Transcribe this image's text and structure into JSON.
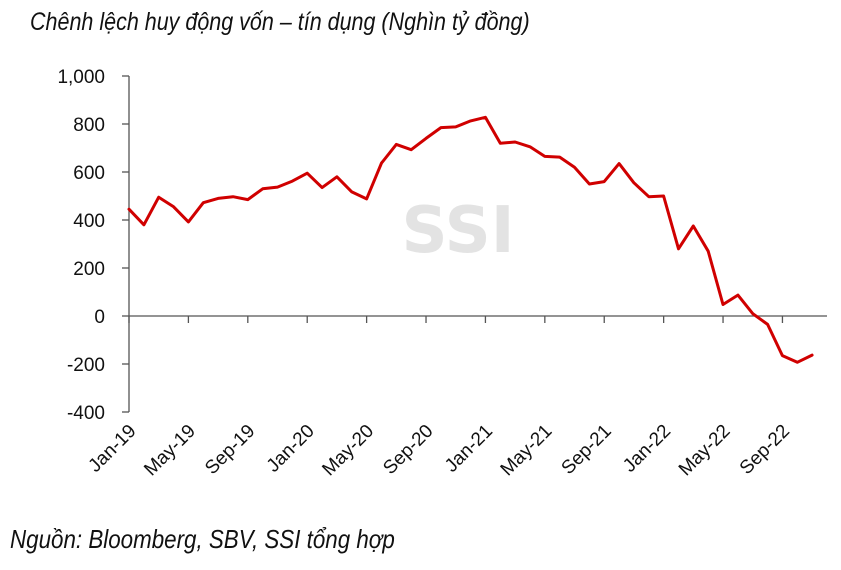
{
  "chart_data": {
    "type": "line",
    "title": "Chênh lệch huy động vốn – tín dụng (Nghìn tỷ đồng)",
    "source": "Nguồn:  Bloomberg, SBV, SSI tổng hợp",
    "watermark": "SSI",
    "xlabel": "",
    "ylabel": "",
    "ylim": [
      -400,
      1000
    ],
    "yticks": [
      1000,
      800,
      600,
      400,
      200,
      0,
      -200,
      -400
    ],
    "ytick_labels": [
      "1,000",
      "800",
      "600",
      "400",
      "200",
      "0",
      "-200",
      "-400"
    ],
    "x_tick_labels": [
      "Jan-19",
      "May-19",
      "Sep-19",
      "Jan-20",
      "May-20",
      "Sep-20",
      "Jan-21",
      "May-21",
      "Sep-21",
      "Jan-22",
      "May-22",
      "Sep-22"
    ],
    "grid": false,
    "legend": "none",
    "line_color": "#d00000",
    "series": [
      {
        "values": [
          445,
          380,
          495,
          455,
          392,
          472,
          490,
          497,
          485,
          530,
          537,
          562,
          595,
          535,
          580,
          517,
          488,
          637,
          715,
          693,
          740,
          785,
          788,
          813,
          828,
          720,
          725,
          705,
          665,
          662,
          620,
          550,
          560,
          635,
          555,
          497,
          500,
          280,
          375,
          270,
          48,
          87,
          10,
          -35,
          -165,
          -193,
          -163
        ]
      }
    ]
  }
}
